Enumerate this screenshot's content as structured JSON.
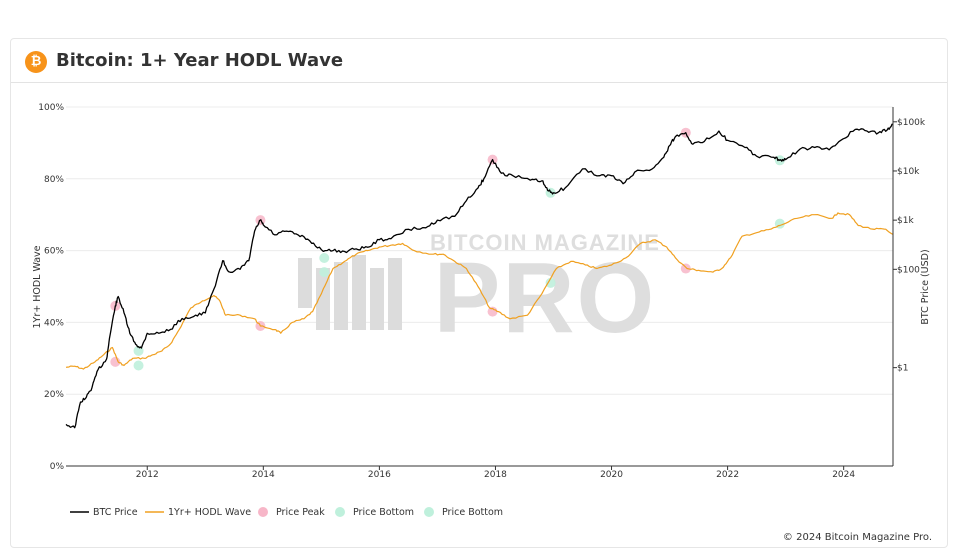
{
  "header": {
    "title": "Bitcoin: 1+ Year HODL Wave",
    "logo_icon": "bitcoin-logo-icon",
    "logo_glyph": "₿"
  },
  "watermark": {
    "line1": "BITCOIN MAGAZINE",
    "line2": "PRO"
  },
  "footer": {
    "copyright": "© 2024 Bitcoin Magazine Pro."
  },
  "colors": {
    "btc_price": "#000000",
    "hodl_wave": "#f0a020",
    "peak": "#f7b6c8",
    "bottom": "#bff0dc",
    "grid": "#ececec",
    "watermark": "#d9d9d9"
  },
  "chart_data": {
    "type": "line",
    "title": "Bitcoin: 1+ Year HODL Wave",
    "xlabel": "",
    "ylabel": "1Yr+ HODL Wave",
    "y2label": "BTC Price (USD)",
    "x_range": [
      2010.6,
      2024.85
    ],
    "x_ticks": [
      "2012",
      "2014",
      "2016",
      "2018",
      "2020",
      "2022",
      "2024"
    ],
    "y_range": [
      0,
      100
    ],
    "y_ticks": [
      "0%",
      "20%",
      "40%",
      "60%",
      "80%",
      "100%"
    ],
    "y2_scale": "log",
    "y2_range": [
      0.01,
      200000
    ],
    "y2_ticks": [
      {
        "value": 1,
        "label": "$1"
      },
      {
        "value": 100,
        "label": "$100"
      },
      {
        "value": 1000,
        "label": "$1k"
      },
      {
        "value": 10000,
        "label": "$10k"
      },
      {
        "value": 100000,
        "label": "$100k"
      }
    ],
    "grid": true,
    "legend_position": "bottom-left",
    "legend": [
      "BTC Price",
      "1Yr+ HODL Wave",
      "Price Peak",
      "Price Bottom",
      "Price Bottom"
    ],
    "series": [
      {
        "name": "BTC Price",
        "axis": "right",
        "points": [
          [
            2010.6,
            0.07
          ],
          [
            2010.75,
            0.06
          ],
          [
            2010.85,
            0.2
          ],
          [
            2010.95,
            0.25
          ],
          [
            2011.05,
            0.4
          ],
          [
            2011.15,
            0.9
          ],
          [
            2011.3,
            1.5
          ],
          [
            2011.35,
            4
          ],
          [
            2011.45,
            18
          ],
          [
            2011.5,
            28
          ],
          [
            2011.6,
            13
          ],
          [
            2011.7,
            5
          ],
          [
            2011.8,
            3
          ],
          [
            2011.9,
            2.5
          ],
          [
            2012.0,
            5
          ],
          [
            2012.2,
            5
          ],
          [
            2012.4,
            6
          ],
          [
            2012.6,
            10
          ],
          [
            2012.8,
            11
          ],
          [
            2013.0,
            13
          ],
          [
            2013.15,
            40
          ],
          [
            2013.3,
            150
          ],
          [
            2013.4,
            90
          ],
          [
            2013.6,
            100
          ],
          [
            2013.75,
            150
          ],
          [
            2013.85,
            600
          ],
          [
            2013.95,
            1000
          ],
          [
            2014.0,
            800
          ],
          [
            2014.2,
            500
          ],
          [
            2014.4,
            600
          ],
          [
            2014.6,
            500
          ],
          [
            2014.8,
            380
          ],
          [
            2015.0,
            250
          ],
          [
            2015.2,
            240
          ],
          [
            2015.4,
            230
          ],
          [
            2015.6,
            260
          ],
          [
            2015.8,
            280
          ],
          [
            2016.0,
            400
          ],
          [
            2016.2,
            420
          ],
          [
            2016.5,
            650
          ],
          [
            2016.8,
            700
          ],
          [
            2017.0,
            1000
          ],
          [
            2017.3,
            1200
          ],
          [
            2017.5,
            2500
          ],
          [
            2017.7,
            4500
          ],
          [
            2017.8,
            7000
          ],
          [
            2017.95,
            17000
          ],
          [
            2018.1,
            9000
          ],
          [
            2018.3,
            8000
          ],
          [
            2018.6,
            6500
          ],
          [
            2018.8,
            6300
          ],
          [
            2018.9,
            4000
          ],
          [
            2019.0,
            3600
          ],
          [
            2019.2,
            4500
          ],
          [
            2019.5,
            11000
          ],
          [
            2019.8,
            8000
          ],
          [
            2020.0,
            8000
          ],
          [
            2020.2,
            5500
          ],
          [
            2020.4,
            9500
          ],
          [
            2020.7,
            11000
          ],
          [
            2020.9,
            19000
          ],
          [
            2021.0,
            33000
          ],
          [
            2021.1,
            50000
          ],
          [
            2021.28,
            60000
          ],
          [
            2021.4,
            35000
          ],
          [
            2021.6,
            40000
          ],
          [
            2021.85,
            65000
          ],
          [
            2022.0,
            42000
          ],
          [
            2022.3,
            30000
          ],
          [
            2022.5,
            20000
          ],
          [
            2022.8,
            19000
          ],
          [
            2022.9,
            16500
          ],
          [
            2023.0,
            17000
          ],
          [
            2023.25,
            28000
          ],
          [
            2023.5,
            30000
          ],
          [
            2023.75,
            27000
          ],
          [
            2023.95,
            42000
          ],
          [
            2024.2,
            70000
          ],
          [
            2024.4,
            65000
          ],
          [
            2024.6,
            60000
          ],
          [
            2024.75,
            68000
          ],
          [
            2024.85,
            90000
          ]
        ]
      },
      {
        "name": "1Yr+ HODL Wave",
        "axis": "left",
        "points": [
          [
            2010.6,
            27.5
          ],
          [
            2010.75,
            27.8
          ],
          [
            2010.9,
            27
          ],
          [
            2011.1,
            29
          ],
          [
            2011.25,
            31
          ],
          [
            2011.4,
            33
          ],
          [
            2011.5,
            29
          ],
          [
            2011.6,
            28
          ],
          [
            2011.75,
            30
          ],
          [
            2011.95,
            30
          ],
          [
            2012.1,
            31
          ],
          [
            2012.25,
            32
          ],
          [
            2012.4,
            34
          ],
          [
            2012.55,
            38
          ],
          [
            2012.75,
            44
          ],
          [
            2012.95,
            46
          ],
          [
            2013.15,
            47.5
          ],
          [
            2013.25,
            46
          ],
          [
            2013.35,
            42
          ],
          [
            2013.6,
            42
          ],
          [
            2013.85,
            41
          ],
          [
            2013.95,
            39
          ],
          [
            2014.2,
            38
          ],
          [
            2014.3,
            37
          ],
          [
            2014.5,
            40
          ],
          [
            2014.7,
            41
          ],
          [
            2014.85,
            43
          ],
          [
            2015.0,
            48
          ],
          [
            2015.2,
            55
          ],
          [
            2015.4,
            57
          ],
          [
            2015.6,
            59
          ],
          [
            2015.8,
            60
          ],
          [
            2016.0,
            61
          ],
          [
            2016.2,
            61.5
          ],
          [
            2016.4,
            62
          ],
          [
            2016.6,
            60
          ],
          [
            2016.9,
            59
          ],
          [
            2017.1,
            59
          ],
          [
            2017.3,
            57
          ],
          [
            2017.5,
            55
          ],
          [
            2017.7,
            50
          ],
          [
            2017.9,
            44
          ],
          [
            2018.05,
            43
          ],
          [
            2018.25,
            41
          ],
          [
            2018.55,
            42
          ],
          [
            2018.8,
            48
          ],
          [
            2019.05,
            55
          ],
          [
            2019.3,
            57
          ],
          [
            2019.55,
            56
          ],
          [
            2019.75,
            55
          ],
          [
            2020.0,
            56
          ],
          [
            2020.25,
            58
          ],
          [
            2020.5,
            62
          ],
          [
            2020.75,
            63
          ],
          [
            2020.95,
            61
          ],
          [
            2021.1,
            58
          ],
          [
            2021.3,
            55
          ],
          [
            2021.5,
            54.5
          ],
          [
            2021.75,
            54
          ],
          [
            2021.9,
            55
          ],
          [
            2022.05,
            58
          ],
          [
            2022.25,
            64
          ],
          [
            2022.5,
            65
          ],
          [
            2022.75,
            66
          ],
          [
            2022.9,
            67
          ],
          [
            2023.2,
            69
          ],
          [
            2023.5,
            70
          ],
          [
            2023.8,
            69
          ],
          [
            2023.9,
            70.5
          ],
          [
            2024.1,
            70
          ],
          [
            2024.25,
            67
          ],
          [
            2024.5,
            66
          ],
          [
            2024.7,
            66
          ],
          [
            2024.85,
            64.5
          ]
        ]
      }
    ],
    "price_peaks": [
      {
        "x": 2011.45,
        "price": 18
      },
      {
        "x": 2013.95,
        "price": 1000
      },
      {
        "x": 2017.95,
        "price": 17000
      },
      {
        "x": 2021.28,
        "price": 60000
      }
    ],
    "price_peaks_hodl": [
      {
        "x": 2011.45,
        "value": 29
      },
      {
        "x": 2013.95,
        "value": 39
      },
      {
        "x": 2017.95,
        "value": 43
      },
      {
        "x": 2021.28,
        "value": 55
      }
    ],
    "price_bottoms": [
      {
        "x": 2011.85,
        "price": 2.2
      },
      {
        "x": 2015.05,
        "price": 170
      },
      {
        "x": 2018.95,
        "price": 3600
      },
      {
        "x": 2022.9,
        "price": 16500
      }
    ],
    "price_bottoms_hodl": [
      {
        "x": 2011.85,
        "value": 28
      },
      {
        "x": 2015.05,
        "value": 54
      },
      {
        "x": 2018.95,
        "value": 51
      },
      {
        "x": 2022.9,
        "value": 67.5
      }
    ]
  }
}
